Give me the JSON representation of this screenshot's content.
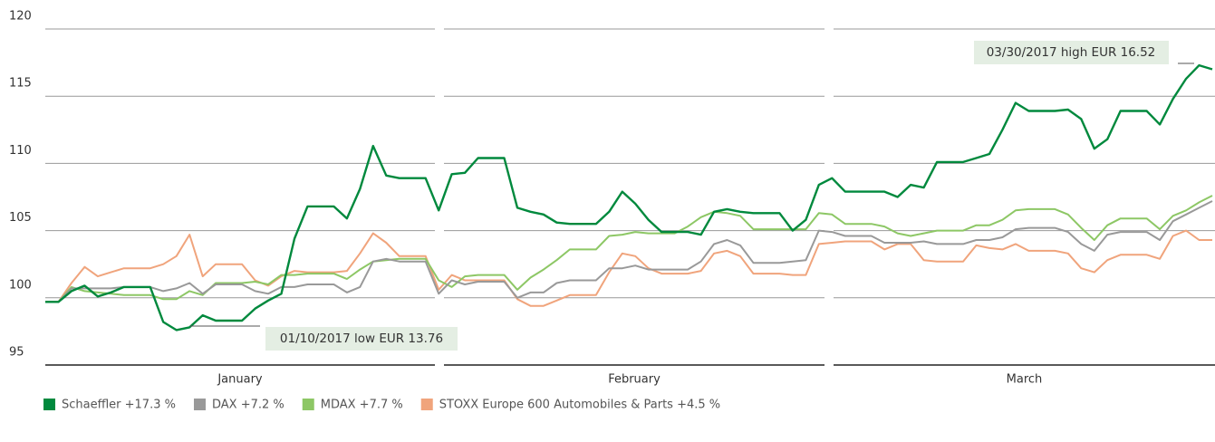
{
  "chart_data": {
    "type": "line",
    "months": [
      "January",
      "February",
      "March"
    ],
    "ylim": [
      95,
      120
    ],
    "yticks": [
      95,
      100,
      105,
      110,
      115,
      120
    ],
    "grid": true,
    "annotations": [
      "03/30/2017 high EUR 16.52",
      "01/10/2017 low EUR 13.76"
    ],
    "series": [
      {
        "name": "Schaeffler +17.3 %",
        "color": "#00893d",
        "values": [
          99.7,
          99.7,
          100.5,
          100.9,
          100.1,
          100.4,
          100.8,
          100.8,
          100.8,
          98.2,
          97.6,
          97.8,
          98.7,
          98.3,
          98.3,
          98.3,
          99.2,
          99.8,
          100.3,
          104.4,
          106.8,
          106.8,
          106.8,
          105.9,
          108.1,
          111.3,
          109.1,
          108.9,
          108.9,
          108.9,
          106.5,
          109.2,
          109.3,
          110.4,
          110.4,
          110.4,
          106.7,
          106.4,
          106.2,
          105.6,
          105.5,
          105.5,
          105.5,
          106.4,
          107.9,
          107.0,
          105.8,
          104.9,
          104.9,
          104.9,
          104.7,
          106.4,
          106.6,
          106.4,
          106.3,
          106.3,
          106.3,
          105.0,
          105.8,
          108.4,
          108.9,
          107.9,
          107.9,
          107.9,
          107.9,
          107.5,
          108.4,
          108.2,
          110.1,
          110.1,
          110.1,
          110.4,
          110.7,
          112.5,
          114.5,
          113.9,
          113.9,
          113.9,
          114.0,
          113.3,
          111.1,
          111.8,
          113.9,
          113.9,
          113.9,
          112.9,
          114.8,
          116.3,
          117.3,
          117.0
        ]
      },
      {
        "name": "DAX +7.2 %",
        "color": "#999999",
        "values": [
          99.7,
          99.7,
          100.7,
          100.7,
          100.7,
          100.7,
          100.8,
          100.8,
          100.8,
          100.5,
          100.7,
          101.1,
          100.3,
          101.0,
          101.0,
          101.0,
          100.5,
          100.3,
          100.8,
          100.8,
          101.0,
          101.0,
          101.0,
          100.4,
          100.8,
          102.7,
          102.9,
          102.7,
          102.7,
          102.7,
          100.3,
          101.3,
          101.0,
          101.2,
          101.2,
          101.2,
          100.0,
          100.4,
          100.4,
          101.1,
          101.3,
          101.3,
          101.3,
          102.2,
          102.2,
          102.4,
          102.1,
          102.1,
          102.1,
          102.1,
          102.7,
          104.0,
          104.3,
          103.9,
          102.6,
          102.6,
          102.6,
          102.7,
          102.8,
          105.0,
          104.9,
          104.6,
          104.6,
          104.6,
          104.1,
          104.1,
          104.1,
          104.2,
          104.0,
          104.0,
          104.0,
          104.3,
          104.3,
          104.5,
          105.1,
          105.2,
          105.2,
          105.2,
          104.9,
          104.0,
          103.5,
          104.7,
          104.9,
          104.9,
          104.9,
          104.3,
          105.7,
          106.2,
          106.7,
          107.2
        ]
      },
      {
        "name": "MDAX +7.7 %",
        "color": "#8dc765",
        "values": [
          99.7,
          99.7,
          100.8,
          100.5,
          100.4,
          100.3,
          100.2,
          100.2,
          100.2,
          99.9,
          99.9,
          100.5,
          100.2,
          101.1,
          101.1,
          101.1,
          101.2,
          101.0,
          101.7,
          101.7,
          101.8,
          101.8,
          101.8,
          101.4,
          102.1,
          102.7,
          102.8,
          102.9,
          102.9,
          102.9,
          101.3,
          100.8,
          101.6,
          101.7,
          101.7,
          101.7,
          100.6,
          101.5,
          102.1,
          102.8,
          103.6,
          103.6,
          103.6,
          104.6,
          104.7,
          104.9,
          104.8,
          104.8,
          104.8,
          105.3,
          106.0,
          106.4,
          106.3,
          106.1,
          105.1,
          105.1,
          105.1,
          105.1,
          105.1,
          106.3,
          106.2,
          105.5,
          105.5,
          105.5,
          105.3,
          104.8,
          104.6,
          104.8,
          105.0,
          105.0,
          105.0,
          105.4,
          105.4,
          105.8,
          106.5,
          106.6,
          106.6,
          106.6,
          106.2,
          105.2,
          104.3,
          105.4,
          105.9,
          105.9,
          105.9,
          105.1,
          106.1,
          106.5,
          107.1,
          107.6
        ]
      },
      {
        "name": "STOXX Europe 600 Automobiles & Parts +4.5 %",
        "color": "#f0a47c",
        "values": [
          99.7,
          99.7,
          101.1,
          102.3,
          101.6,
          101.9,
          102.2,
          102.2,
          102.2,
          102.5,
          103.1,
          104.7,
          101.6,
          102.5,
          102.5,
          102.5,
          101.3,
          100.9,
          101.6,
          102.0,
          101.9,
          101.9,
          101.9,
          102.0,
          103.3,
          104.8,
          104.1,
          103.1,
          103.1,
          103.1,
          100.6,
          101.7,
          101.3,
          101.3,
          101.3,
          101.3,
          99.9,
          99.4,
          99.4,
          99.8,
          100.2,
          100.2,
          100.2,
          101.9,
          103.3,
          103.1,
          102.2,
          101.8,
          101.8,
          101.8,
          102.0,
          103.3,
          103.5,
          103.1,
          101.8,
          101.8,
          101.8,
          101.7,
          101.7,
          104.0,
          104.1,
          104.2,
          104.2,
          104.2,
          103.6,
          104.0,
          104.0,
          102.8,
          102.7,
          102.7,
          102.7,
          103.9,
          103.7,
          103.6,
          104.0,
          103.5,
          103.5,
          103.5,
          103.3,
          102.2,
          101.9,
          102.8,
          103.2,
          103.2,
          103.2,
          102.9,
          104.6,
          105.0,
          104.3,
          104.3
        ]
      }
    ]
  }
}
